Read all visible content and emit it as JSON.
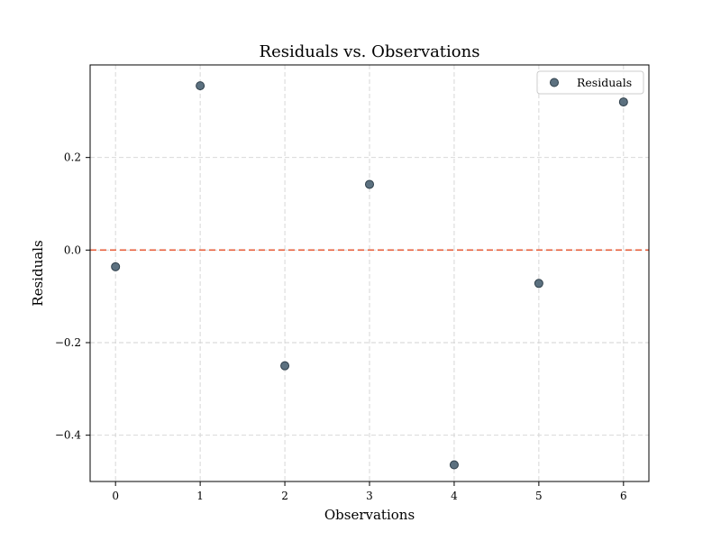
{
  "chart_data": {
    "type": "scatter",
    "title": "Residuals vs. Observations",
    "xlabel": "Observations",
    "ylabel": "Residuals",
    "xlim": [
      -0.3,
      6.3
    ],
    "ylim": [
      -0.5,
      0.4
    ],
    "xticks": [
      0,
      1,
      2,
      3,
      4,
      5,
      6
    ],
    "yticks": [
      -0.4,
      -0.2,
      0.0,
      0.2
    ],
    "xtick_labels": [
      "0",
      "1",
      "2",
      "3",
      "4",
      "5",
      "6"
    ],
    "ytick_labels": [
      "−0.4",
      "−0.2",
      "0.0",
      "0.2"
    ],
    "grid": true,
    "legend_position": "top-right",
    "series": [
      {
        "name": "Residuals",
        "color": "#4a6272",
        "x": [
          0,
          1,
          2,
          3,
          4,
          5,
          6
        ],
        "y": [
          -0.036,
          0.355,
          -0.25,
          0.142,
          -0.464,
          -0.072,
          0.32
        ]
      }
    ],
    "reference_line": {
      "y": 0.0,
      "color": "#e8603c",
      "style": "dashed"
    }
  }
}
